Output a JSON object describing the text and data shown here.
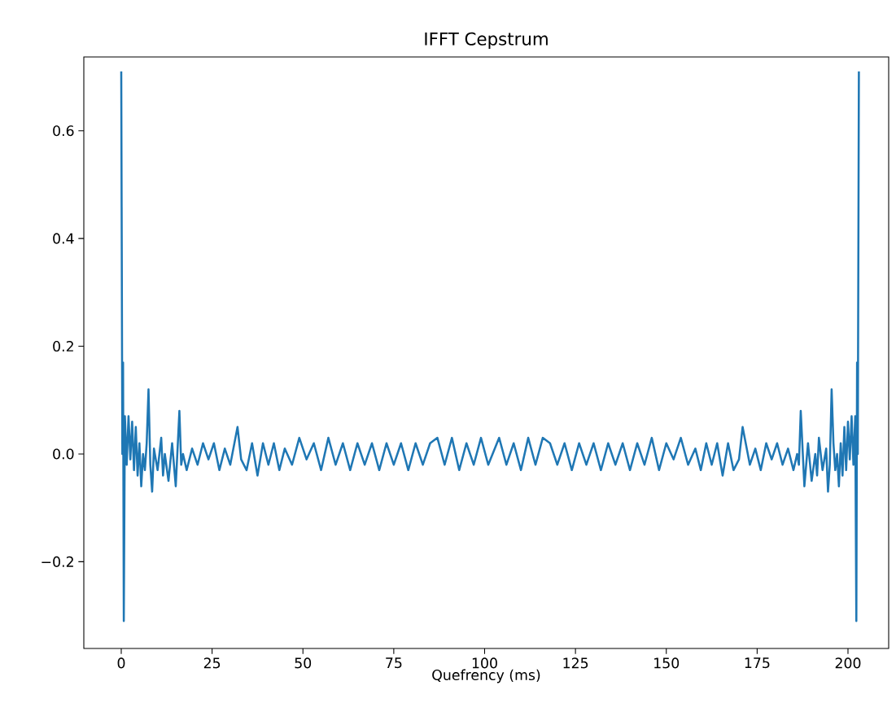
{
  "chart_data": {
    "type": "line",
    "title": "IFFT Cepstrum",
    "xlabel": "Quefrency (ms)",
    "xlim": [
      -10.3,
      211.2
    ],
    "ylim": [
      -0.361,
      0.737
    ],
    "xticks": [
      0,
      25,
      50,
      75,
      100,
      125,
      150,
      175,
      200
    ],
    "yticks": [
      {
        "value": -0.2,
        "label": "−0.2"
      },
      {
        "value": 0.0,
        "label": "0.0"
      },
      {
        "value": 0.2,
        "label": "0.2"
      },
      {
        "value": 0.4,
        "label": "0.4"
      },
      {
        "value": 0.6,
        "label": "0.6"
      }
    ],
    "color": "#1f77b4",
    "x": [
      0,
      0.3,
      0.5,
      0.7,
      1,
      1.5,
      2,
      2.5,
      3,
      3.5,
      4,
      4.5,
      5,
      5.5,
      6,
      6.5,
      7,
      7.5,
      8,
      8.5,
      9,
      10,
      11,
      11.5,
      12,
      13,
      14,
      15,
      16,
      16.5,
      17,
      18,
      19.5,
      21,
      22.5,
      24,
      25.5,
      27,
      28.5,
      30,
      32,
      33,
      34.5,
      36,
      37.5,
      39,
      40.5,
      42,
      43.5,
      45,
      47,
      49,
      51,
      53,
      55,
      57,
      59,
      61,
      63,
      65,
      67,
      69,
      71,
      73,
      75,
      77,
      79,
      81,
      83,
      85,
      87,
      89,
      91,
      93,
      95,
      97,
      99,
      101,
      104,
      106,
      108,
      110,
      112,
      114,
      116,
      118,
      120,
      122,
      124,
      126,
      128,
      130,
      132,
      134,
      136,
      138,
      140,
      142,
      144,
      146,
      148,
      150,
      152,
      154,
      156,
      158,
      159.5,
      161,
      162.5,
      164,
      165.5,
      167,
      168.5,
      170,
      171,
      173,
      174.5,
      176,
      177.5,
      179,
      180.5,
      182,
      183.5,
      185,
      186,
      186.5,
      187,
      188,
      189,
      190,
      191,
      191.5,
      192,
      193,
      194,
      194.5,
      195,
      195.5,
      196,
      196.5,
      197,
      197.5,
      198,
      198.5,
      199,
      199.5,
      200,
      200.5,
      201,
      201.5,
      202,
      202.3,
      202.5,
      202.7,
      203
    ],
    "values": [
      0.71,
      0.0,
      0.17,
      -0.31,
      0.07,
      -0.02,
      0.07,
      -0.01,
      0.06,
      -0.03,
      0.05,
      -0.04,
      0.02,
      -0.06,
      0.0,
      -0.03,
      0.02,
      0.12,
      -0.02,
      -0.07,
      0.01,
      -0.03,
      0.03,
      -0.04,
      0.0,
      -0.05,
      0.02,
      -0.06,
      0.08,
      -0.02,
      0.0,
      -0.03,
      0.01,
      -0.02,
      0.02,
      -0.01,
      0.02,
      -0.03,
      0.01,
      -0.02,
      0.05,
      -0.01,
      -0.03,
      0.02,
      -0.04,
      0.02,
      -0.02,
      0.02,
      -0.03,
      0.01,
      -0.02,
      0.03,
      -0.01,
      0.02,
      -0.03,
      0.03,
      -0.02,
      0.02,
      -0.03,
      0.02,
      -0.02,
      0.02,
      -0.03,
      0.02,
      -0.02,
      0.02,
      -0.03,
      0.02,
      -0.02,
      0.02,
      0.03,
      -0.02,
      0.03,
      -0.03,
      0.02,
      -0.02,
      0.03,
      -0.02,
      0.03,
      -0.02,
      0.02,
      -0.03,
      0.03,
      -0.02,
      0.03,
      0.02,
      -0.02,
      0.02,
      -0.03,
      0.02,
      -0.02,
      0.02,
      -0.03,
      0.02,
      -0.02,
      0.02,
      -0.03,
      0.02,
      -0.02,
      0.03,
      -0.03,
      0.02,
      -0.01,
      0.03,
      -0.02,
      0.01,
      -0.03,
      0.02,
      -0.02,
      0.02,
      -0.04,
      0.02,
      -0.03,
      -0.01,
      0.05,
      -0.02,
      0.01,
      -0.03,
      0.02,
      -0.01,
      0.02,
      -0.02,
      0.01,
      -0.03,
      0.0,
      -0.02,
      0.08,
      -0.06,
      0.02,
      -0.05,
      0.0,
      -0.04,
      0.03,
      -0.03,
      0.01,
      -0.07,
      -0.02,
      0.12,
      0.02,
      -0.03,
      0.0,
      -0.06,
      0.02,
      -0.04,
      0.05,
      -0.03,
      0.06,
      -0.01,
      0.07,
      -0.02,
      0.07,
      -0.31,
      0.17,
      0.0,
      0.71
    ]
  }
}
